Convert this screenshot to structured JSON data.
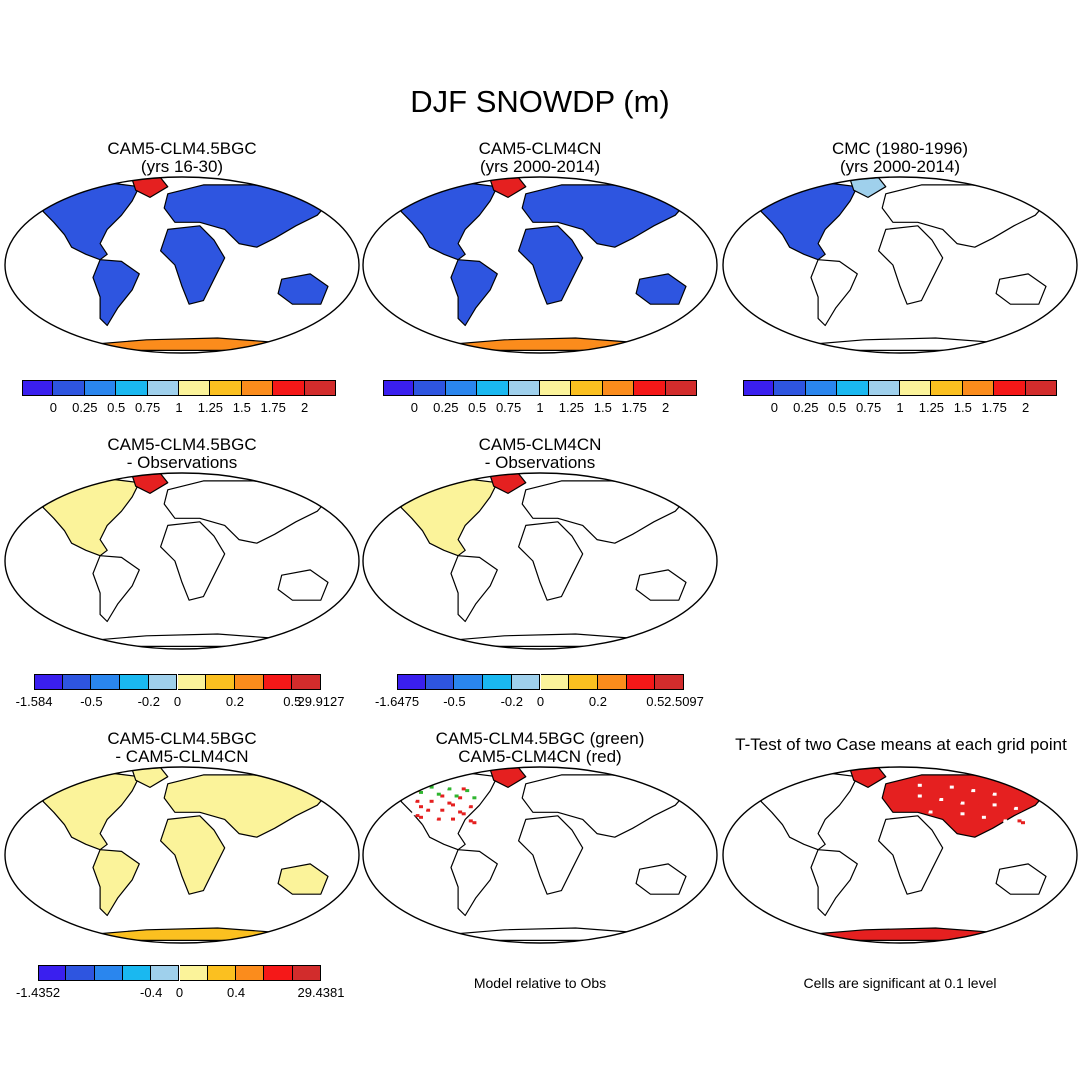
{
  "title": "DJF SNOWDP (m)",
  "palette": [
    "#3a1fef",
    "#2e55e0",
    "#2a86ee",
    "#1ab8f0",
    "#9fd0ec",
    "#fbf39a",
    "#fbc020",
    "#fb8c1c",
    "#f51818",
    "#d22c2c"
  ],
  "panels": [
    {
      "id": "p1",
      "title1": "CAM5-CLM4.5BGC",
      "title2": "(yrs 16-30)",
      "fill": "blue_full",
      "colorbar": {
        "ticks": [
          "0",
          "0.25",
          "0.5",
          "0.75",
          "1",
          "1.25",
          "1.5",
          "1.75",
          "2"
        ]
      }
    },
    {
      "id": "p2",
      "title1": "CAM5-CLM4CN",
      "title2": "(yrs 2000-2014)",
      "fill": "blue_full",
      "colorbar": {
        "ticks": [
          "0",
          "0.25",
          "0.5",
          "0.75",
          "1",
          "1.25",
          "1.5",
          "1.75",
          "2"
        ]
      }
    },
    {
      "id": "p3",
      "title1": "CMC (1980-1996)",
      "title2": "(yrs 2000-2014)",
      "fill": "namerica_blue",
      "colorbar": {
        "ticks": [
          "0",
          "0.25",
          "0.5",
          "0.75",
          "1",
          "1.25",
          "1.5",
          "1.75",
          "2"
        ]
      }
    },
    {
      "id": "p4",
      "title1": "CAM5-CLM4.5BGC",
      "title2": "- Observations",
      "fill": "namerica_diff",
      "colorbar": {
        "ticks": [
          "-1.584",
          "-0.5",
          "-0.2",
          "0",
          "0.2",
          "0.5",
          "29.9127"
        ]
      }
    },
    {
      "id": "p5",
      "title1": "CAM5-CLM4CN",
      "title2": "- Observations",
      "fill": "namerica_diff",
      "colorbar": {
        "ticks": [
          "-1.6475",
          "-0.5",
          "-0.2",
          "0",
          "0.2",
          "0.5",
          "2.5097"
        ]
      }
    },
    {
      "id": "p6",
      "title1": "CAM5-CLM4.5BGC",
      "title2": "- CAM5-CLM4CN",
      "fill": "yellow_full",
      "colorbar": {
        "ticks": [
          "-1.4352",
          "-0.4",
          "0",
          "0.4",
          "29.4381"
        ]
      }
    },
    {
      "id": "p7",
      "title1": "CAM5-CLM4.5BGC (green)",
      "title2": "CAM5-CLM4CN (red)",
      "fill": "red_namerica",
      "note": "Model relative to Obs"
    },
    {
      "id": "p8",
      "title1": "T-Test of two Case means at each grid point",
      "title2": "",
      "fill": "ttest",
      "note": "Cells are significant at 0.1 level"
    }
  ]
}
